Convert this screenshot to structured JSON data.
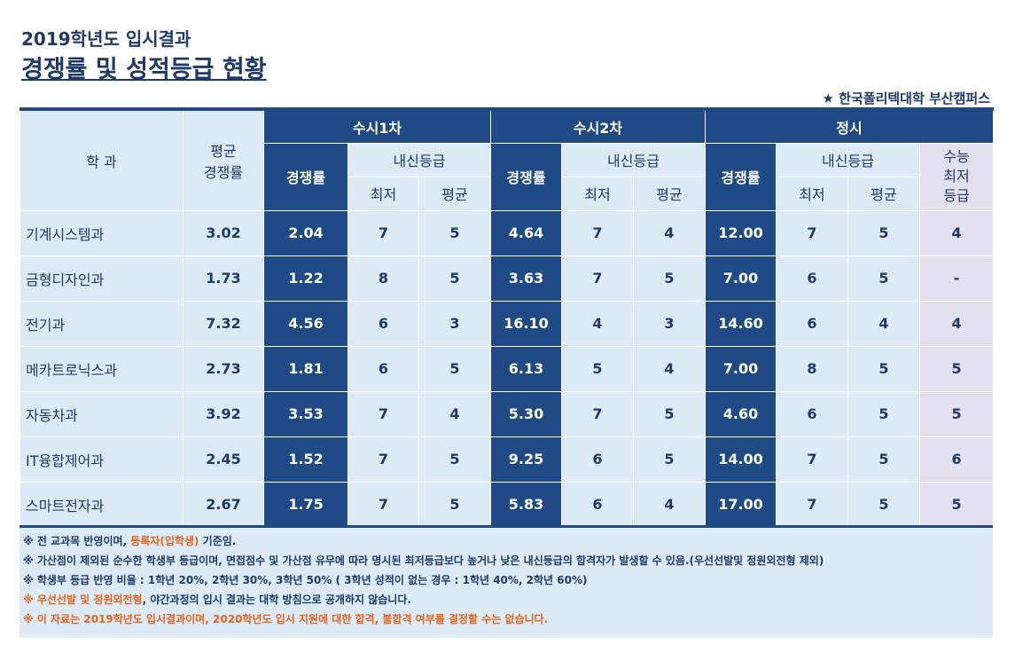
{
  "title": {
    "line1": "2019학년도 입시결과",
    "line2": "경쟁률 및 성적등급 현황"
  },
  "campus": "★ 한국폴리텍대학 부산캠퍼스",
  "header": {
    "dept": "학    과",
    "avg_comp_1": "평균",
    "avg_comp_2": "경쟁률",
    "susi1": "수시1차",
    "susi2": "수시2차",
    "jeongsi": "정시",
    "comp": "경쟁률",
    "naesin": "내신등급",
    "min": "최저",
    "avg": "평균",
    "suneung_1": "수능",
    "suneung_2": "최저",
    "suneung_3": "등급"
  },
  "rows": [
    {
      "dept": "기계시스템과",
      "avg": "3.02",
      "s1c": "2.04",
      "s1min": "7",
      "s1avg": "5",
      "s2c": "4.64",
      "s2min": "7",
      "s2avg": "4",
      "jc": "12.00",
      "jmin": "7",
      "javg": "5",
      "sn": "4"
    },
    {
      "dept": "금형디자인과",
      "avg": "1.73",
      "s1c": "1.22",
      "s1min": "8",
      "s1avg": "5",
      "s2c": "3.63",
      "s2min": "7",
      "s2avg": "5",
      "jc": "7.00",
      "jmin": "6",
      "javg": "5",
      "sn": "-"
    },
    {
      "dept": "전기과",
      "avg": "7.32",
      "s1c": "4.56",
      "s1min": "6",
      "s1avg": "3",
      "s2c": "16.10",
      "s2min": "4",
      "s2avg": "3",
      "jc": "14.60",
      "jmin": "6",
      "javg": "4",
      "sn": "4"
    },
    {
      "dept": "메카트로닉스과",
      "avg": "2.73",
      "s1c": "1.81",
      "s1min": "6",
      "s1avg": "5",
      "s2c": "6.13",
      "s2min": "5",
      "s2avg": "4",
      "jc": "7.00",
      "jmin": "8",
      "javg": "5",
      "sn": "5"
    },
    {
      "dept": "자동차과",
      "avg": "3.92",
      "s1c": "3.53",
      "s1min": "7",
      "s1avg": "4",
      "s2c": "5.30",
      "s2min": "7",
      "s2avg": "5",
      "jc": "4.60",
      "jmin": "6",
      "javg": "5",
      "sn": "5"
    },
    {
      "dept": "IT융합제어과",
      "avg": "2.45",
      "s1c": "1.52",
      "s1min": "7",
      "s1avg": "5",
      "s2c": "9.25",
      "s2min": "6",
      "s2avg": "5",
      "jc": "14.00",
      "jmin": "7",
      "javg": "5",
      "sn": "6"
    },
    {
      "dept": "스마트전자과",
      "avg": "2.67",
      "s1c": "1.75",
      "s1min": "7",
      "s1avg": "5",
      "s2c": "5.83",
      "s2min": "6",
      "s2avg": "4",
      "jc": "17.00",
      "jmin": "7",
      "javg": "5",
      "sn": "5"
    }
  ],
  "notes": {
    "n1_a": "※ 전 교과목 반영이며, ",
    "n1_b": "등록자(입학생)",
    "n1_c": " 기준임.",
    "n2": "※ 가산점이 제외된 순수한 학생부 등급이며, 면접점수 및 가산점 유무에 따라 명시된 최저등급보다 높거나 낮은 내신등급의 합격자가 발생할 수 있음.(우선선발및 정원외전형 제외)",
    "n3": "※ 학생부 등급 반영 비율 : 1학년 20%, 2학년 30%, 3학년 50% ( 3학년 성적이 없는 경우 : 1학년 40%, 2학년 60%)",
    "n4_a": "※ 우선선발 및 정원외전형",
    "n4_b": ", 야간과정의 입시 결과는 대학 방침으로 공개하지 않습니다.",
    "n5": "※ 이 자료는 2019학년도 입시결과이며, 2020학년도 입시 지원에 대한 합격, 불합격 여부를 결정할 수는 없습니다."
  },
  "colors": {
    "navy": "#1f4a85",
    "light_blue": "#dceaf5",
    "lavender": "#e3e0ef",
    "orange": "#e8641b"
  }
}
